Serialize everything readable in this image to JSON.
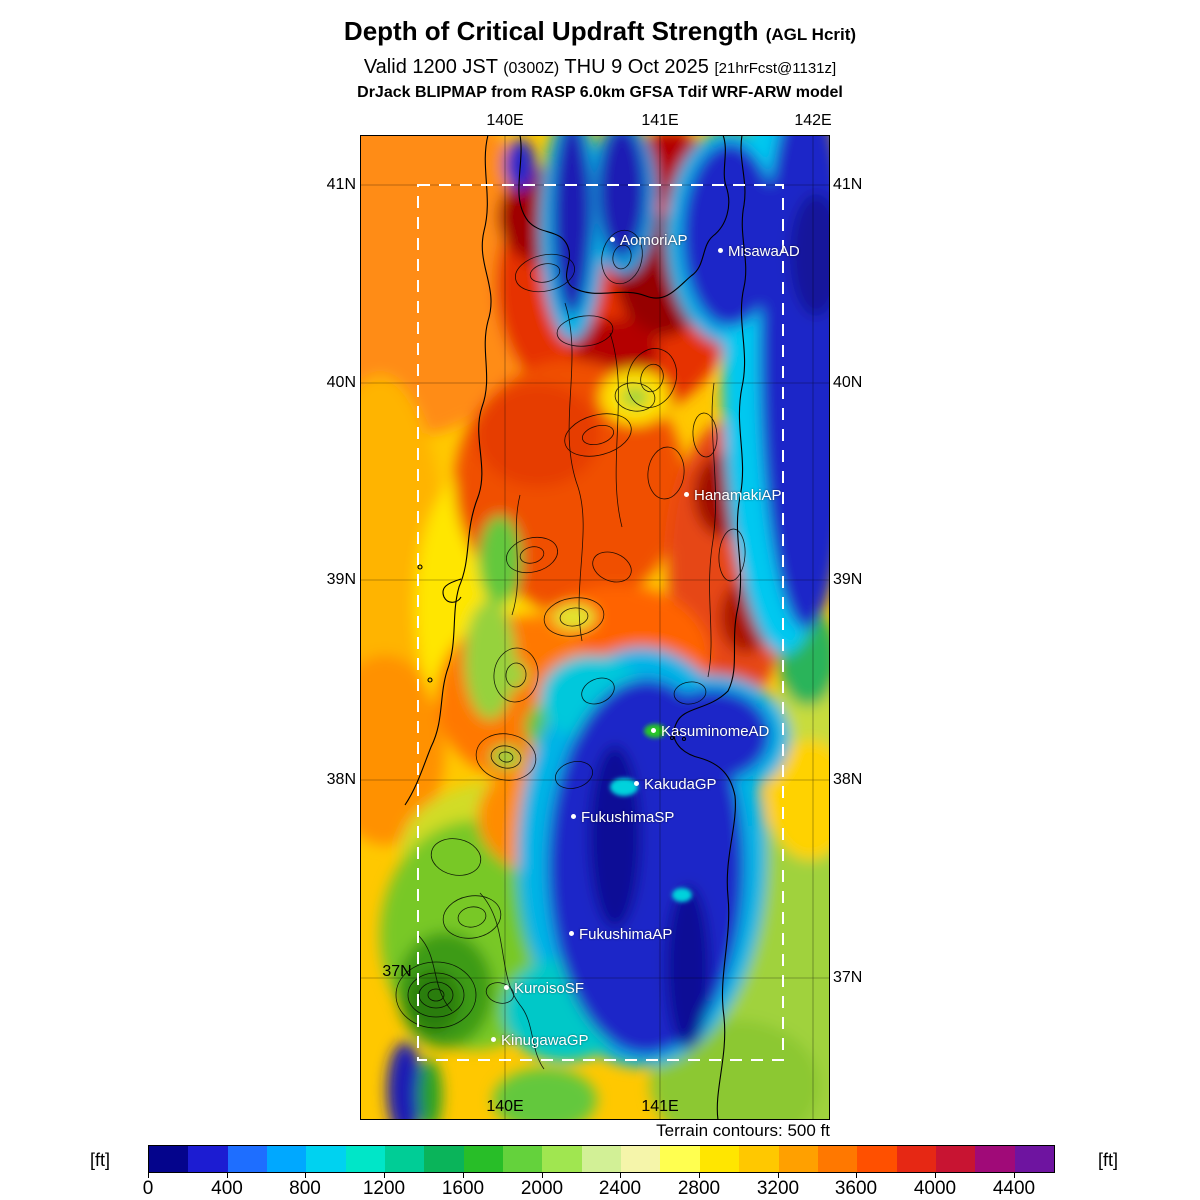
{
  "header": {
    "title": "Depth of Critical Updraft Strength",
    "title_suffix": "(AGL Hcrit)",
    "valid_prefix": "Valid 1200 JST",
    "valid_zulu": "(0300Z)",
    "valid_date": "THU 9 Oct 2025",
    "valid_fcst": "[21hrFcst@1131z]",
    "model_line": "DrJack BLIPMAP from RASP 6.0km GFSA Tdif WRF-ARW model"
  },
  "map": {
    "top_lon_labels": [
      "140E",
      "141E",
      "142E"
    ],
    "bottom_lon_labels": [
      "140E",
      "141E"
    ],
    "left_lat_labels": [
      "41N",
      "40N",
      "39N",
      "38N"
    ],
    "right_lat_labels": [
      "41N",
      "40N",
      "39N",
      "38N",
      "37N"
    ],
    "inner_lat_label": "37N",
    "stations": [
      {
        "name": "AomoriAP"
      },
      {
        "name": "MisawaAD"
      },
      {
        "name": "HanamakiAP"
      },
      {
        "name": "KasuminomeAD"
      },
      {
        "name": "KakudaGP"
      },
      {
        "name": "FukushimaSP"
      },
      {
        "name": "FukushimaAP"
      },
      {
        "name": "KuroisoSF"
      },
      {
        "name": "KinugawaGP"
      }
    ],
    "terrain_note": "Terrain contours: 500 ft"
  },
  "colorbar": {
    "unit_label_left": "[ft]",
    "unit_label_right": "[ft]",
    "tick_labels": [
      "0",
      "400",
      "800",
      "1200",
      "1600",
      "2000",
      "2400",
      "2800",
      "3200",
      "3600",
      "4000",
      "4400"
    ],
    "segment_colors": [
      "#04048c",
      "#1c1cd2",
      "#1e6eff",
      "#00a8ff",
      "#00d2f0",
      "#00e6c8",
      "#00cd96",
      "#0ab45a",
      "#28be28",
      "#64d23c",
      "#a0e650",
      "#d2f096",
      "#f5f5aa",
      "#ffff50",
      "#ffe600",
      "#ffc800",
      "#ffa000",
      "#ff7800",
      "#ff5000",
      "#e62814",
      "#c81432",
      "#a00a78",
      "#6e14a0"
    ]
  }
}
